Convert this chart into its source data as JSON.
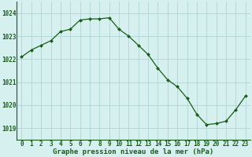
{
  "x": [
    0,
    1,
    2,
    3,
    4,
    5,
    6,
    7,
    8,
    9,
    10,
    11,
    12,
    13,
    14,
    15,
    16,
    17,
    18,
    19,
    20,
    21,
    22,
    23
  ],
  "y": [
    1022.1,
    1022.4,
    1022.6,
    1022.8,
    1023.2,
    1023.3,
    1023.7,
    1023.75,
    1023.75,
    1023.8,
    1023.3,
    1023.0,
    1022.6,
    1022.2,
    1021.6,
    1021.1,
    1020.8,
    1020.3,
    1019.6,
    1019.15,
    1019.2,
    1019.3,
    1019.8,
    1020.4
  ],
  "line_color": "#1a5c1a",
  "marker": "D",
  "marker_size": 2.0,
  "bg_color": "#d6f0f0",
  "grid_color": "#b0d4d4",
  "xlabel": "Graphe pression niveau de la mer (hPa)",
  "xlabel_color": "#1a5c1a",
  "xlabel_fontsize": 6.5,
  "tick_label_color": "#1a5c1a",
  "tick_fontsize": 5.5,
  "ytick_labels": [
    1019,
    1020,
    1021,
    1022,
    1023,
    1024
  ],
  "ylim": [
    1018.5,
    1024.5
  ],
  "xlim": [
    -0.5,
    23.5
  ],
  "xtick_labels": [
    "0",
    "1",
    "2",
    "3",
    "4",
    "5",
    "6",
    "7",
    "8",
    "9",
    "10",
    "11",
    "12",
    "13",
    "14",
    "15",
    "16",
    "17",
    "18",
    "19",
    "20",
    "21",
    "22",
    "23"
  ]
}
